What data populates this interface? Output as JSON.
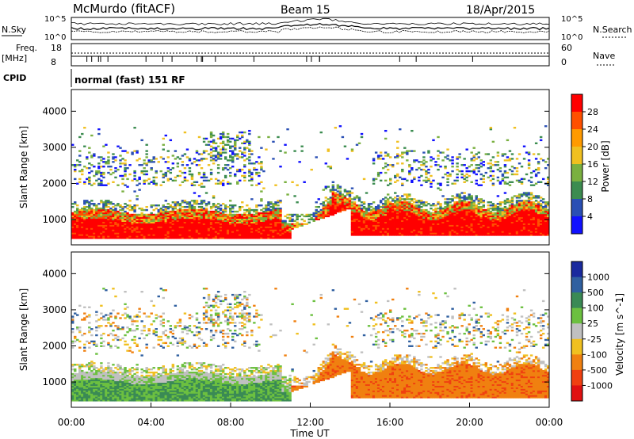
{
  "header": {
    "station": "McMurdo (fitACF)",
    "beam": "Beam 15",
    "date": "18/Apr/2015"
  },
  "top_panels": {
    "nsky_label": "N.Sky",
    "nsearch_label": "N.Search",
    "scale_top": "10^5",
    "scale_bottom": "10^0",
    "freq_label_1": "Freq.",
    "freq_label_2": "[MHz]",
    "freq_ticks": [
      "18",
      "8"
    ],
    "nave_label": "Nave",
    "nave_ticks": [
      "60",
      "0"
    ],
    "cpid_label": "CPID",
    "cpid_text": "normal (fast) 151 RF"
  },
  "chart_data": [
    {
      "type": "heatmap",
      "name": "power",
      "ylabel": "Slant Range [km]",
      "ylim": [
        300,
        4600
      ],
      "y_ticks": [
        1000,
        2000,
        3000,
        4000
      ],
      "colorbar_label": "Power [dB]",
      "colorbar_ticks": [
        "28",
        "24",
        "20",
        "16",
        "12",
        "8",
        "4"
      ],
      "colorbar_colors": [
        "#ff0000",
        "#ff5000",
        "#ff9a00",
        "#f0c020",
        "#7ab040",
        "#3c8c50",
        "#2a4fb4",
        "#1010ff"
      ]
    },
    {
      "type": "heatmap",
      "name": "velocity",
      "ylabel": "Slant Range [km]",
      "xlabel": "Time UT",
      "ylim": [
        300,
        4600
      ],
      "y_ticks": [
        1000,
        2000,
        3000,
        4000
      ],
      "x_ticks": [
        "00:00",
        "04:00",
        "08:00",
        "12:00",
        "16:00",
        "20:00",
        "00:00"
      ],
      "colorbar_label": "Velocity [m s^-1]",
      "colorbar_ticks": [
        "1000",
        "500",
        "100",
        "25",
        "-25",
        "-100",
        "-500",
        "-1000"
      ],
      "colorbar_colors": [
        "#1a2a9e",
        "#3060a0",
        "#3a8a55",
        "#6cc040",
        "#c0c0c0",
        "#f0c020",
        "#f08010",
        "#f04010",
        "#e01010"
      ]
    }
  ]
}
